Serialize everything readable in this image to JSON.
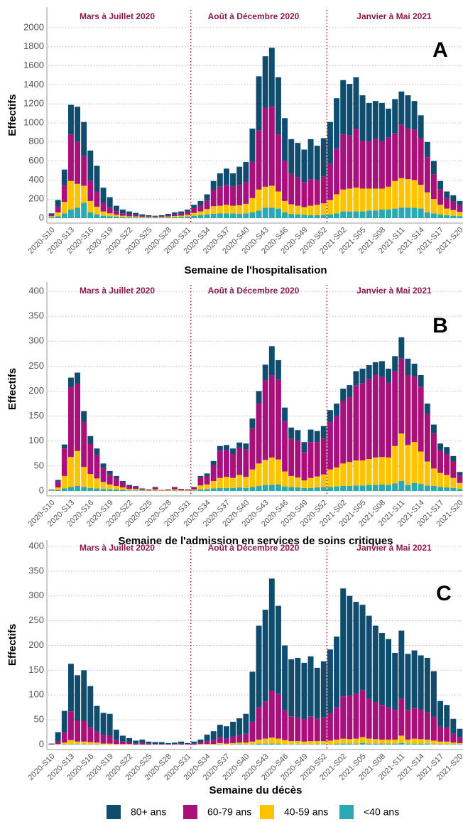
{
  "chart_data": [
    {
      "type": "bar",
      "stacked": true,
      "panel_label": "A",
      "y_label": "Effectifs",
      "x_label": "Semaine de l'hospitalisation",
      "annotations": [
        "Mars à Juillet 2020",
        "Août à Décembre 2020",
        "Janvier à Mai 2021"
      ],
      "legend": "bottom",
      "grid": true,
      "categories": [
        "2020-S10",
        null,
        null,
        "2020-S13",
        null,
        null,
        "2020-S16",
        null,
        null,
        "2020-S19",
        null,
        null,
        "2020-S22",
        null,
        null,
        "2020-S25",
        null,
        null,
        "2020-S28",
        null,
        null,
        "2020-S31",
        null,
        null,
        "2020-S34",
        null,
        null,
        "2020-S37",
        null,
        null,
        "2020-S40",
        null,
        null,
        "2020-S43",
        null,
        null,
        "2020-S46",
        null,
        null,
        "2020-S49",
        null,
        null,
        "2020-S52",
        null,
        null,
        "2021-S02",
        null,
        null,
        "2021-S05",
        null,
        null,
        "2021-S08",
        null,
        null,
        "2021-S11",
        null,
        null,
        "2021-S14",
        null,
        null,
        "2021-S17",
        null,
        null,
        "2021-S20"
      ],
      "ylim": [
        0,
        2000
      ],
      "yticks": [
        0,
        200,
        400,
        600,
        800,
        1000,
        1200,
        1400,
        1600,
        1800,
        2000
      ],
      "series": [
        {
          "name": "80+ ans",
          "color": "#0f4c6e",
          "values": [
            15,
            70,
            160,
            310,
            370,
            360,
            320,
            270,
            160,
            110,
            60,
            40,
            30,
            22,
            15,
            10,
            9,
            10,
            15,
            20,
            22,
            25,
            35,
            50,
            65,
            95,
            140,
            170,
            140,
            195,
            210,
            350,
            570,
            540,
            620,
            600,
            450,
            365,
            360,
            345,
            420,
            360,
            405,
            440,
            530,
            570,
            540,
            540,
            480,
            400,
            400,
            400,
            300,
            360,
            350,
            350,
            300,
            240,
            160,
            140,
            90,
            70,
            65,
            45
          ]
        },
        {
          "name": "60-79 ans",
          "color": "#a8117c",
          "values": [
            15,
            60,
            180,
            490,
            440,
            310,
            210,
            160,
            90,
            60,
            35,
            25,
            20,
            15,
            11,
            9,
            7,
            9,
            13,
            18,
            22,
            30,
            50,
            60,
            90,
            170,
            200,
            210,
            200,
            210,
            230,
            380,
            620,
            830,
            830,
            600,
            420,
            320,
            300,
            260,
            280,
            260,
            280,
            380,
            480,
            580,
            560,
            620,
            500,
            500,
            520,
            500,
            520,
            500,
            560,
            530,
            530,
            490,
            370,
            260,
            160,
            110,
            90,
            70
          ]
        },
        {
          "name": "40-59 ans",
          "color": "#fcc300",
          "values": [
            10,
            40,
            120,
            300,
            250,
            180,
            120,
            80,
            45,
            30,
            20,
            15,
            10,
            10,
            8,
            6,
            5,
            6,
            9,
            12,
            14,
            20,
            30,
            40,
            55,
            80,
            80,
            90,
            80,
            90,
            100,
            150,
            220,
            220,
            230,
            180,
            120,
            100,
            90,
            80,
            100,
            110,
            120,
            150,
            200,
            230,
            240,
            250,
            240,
            230,
            230,
            220,
            240,
            290,
            310,
            300,
            290,
            250,
            210,
            150,
            100,
            70,
            60,
            45
          ]
        },
        {
          "name": "<40 ans",
          "color": "#2ba8b2",
          "values": [
            10,
            20,
            50,
            90,
            110,
            160,
            60,
            40,
            25,
            20,
            15,
            10,
            10,
            8,
            6,
            5,
            4,
            5,
            8,
            10,
            12,
            15,
            25,
            30,
            40,
            45,
            50,
            50,
            50,
            45,
            50,
            60,
            80,
            110,
            110,
            100,
            60,
            45,
            40,
            35,
            30,
            30,
            35,
            40,
            50,
            70,
            70,
            70,
            70,
            80,
            80,
            90,
            90,
            100,
            110,
            110,
            110,
            100,
            60,
            50,
            40,
            30,
            25,
            20
          ]
        }
      ]
    },
    {
      "type": "bar",
      "stacked": true,
      "panel_label": "B",
      "y_label": "Effectifs",
      "x_label": "Semaine de l'admission en services de soins critiques",
      "annotations": [
        "Mars à Juillet 2020",
        "Août à Décembre 2020",
        "Janvier à Mai 2021"
      ],
      "grid": true,
      "categories": [
        "2020-S10",
        null,
        null,
        "2020-S13",
        null,
        null,
        "2020-S16",
        null,
        null,
        "2020-S19",
        null,
        null,
        "2020-S22",
        null,
        null,
        "2020-S25",
        null,
        null,
        "2020-S28",
        null,
        null,
        "2020-S31",
        null,
        null,
        "2020-S34",
        null,
        null,
        "2020-S37",
        null,
        null,
        "2020-S40",
        null,
        null,
        "2020-S43",
        null,
        null,
        "2020-S46",
        null,
        null,
        "2020-S49",
        null,
        null,
        "2020-S52",
        null,
        null,
        "2021-S02",
        null,
        null,
        "2021-S05",
        null,
        null,
        "2021-S08",
        null,
        null,
        "2021-S11",
        null,
        null,
        "2021-S14",
        null,
        null,
        "2021-S17",
        null,
        null,
        "2021-S20"
      ],
      "ylim": [
        0,
        400
      ],
      "yticks": [
        0,
        50,
        100,
        150,
        200,
        250,
        300,
        350,
        400
      ],
      "series": [
        {
          "color": "#0f4c6e",
          "values": [
            0,
            3,
            8,
            19,
            22,
            22,
            16,
            13,
            9,
            7,
            5,
            3,
            2,
            1,
            1,
            1,
            1,
            0,
            1,
            1,
            1,
            1,
            1,
            4,
            5,
            8,
            9,
            10,
            11,
            10,
            12,
            20,
            25,
            31,
            58,
            39,
            28,
            22,
            22,
            20,
            25,
            22,
            25,
            24,
            25,
            25,
            24,
            29,
            29,
            28,
            26,
            32,
            28,
            30,
            43,
            33,
            25,
            23,
            21,
            18,
            14,
            14,
            11,
            6
          ]
        },
        {
          "color": "#a8117c",
          "values": [
            1,
            12,
            55,
            140,
            135,
            90,
            60,
            47,
            28,
            20,
            15,
            10,
            6,
            5,
            2,
            1,
            4,
            1,
            1,
            4,
            2,
            1,
            4,
            15,
            17,
            32,
            55,
            54,
            48,
            55,
            55,
            82,
            120,
            160,
            165,
            160,
            100,
            75,
            73,
            57,
            72,
            69,
            72,
            95,
            103,
            125,
            130,
            150,
            155,
            160,
            165,
            160,
            150,
            150,
            150,
            140,
            132,
            130,
            95,
            70,
            45,
            42,
            33,
            16
          ]
        },
        {
          "color": "#fcc300",
          "values": [
            1,
            5,
            25,
            60,
            70,
            40,
            28,
            20,
            14,
            10,
            7,
            5,
            3,
            3,
            1,
            1,
            2,
            1,
            1,
            2,
            1,
            1,
            2,
            8,
            9,
            15,
            20,
            22,
            20,
            25,
            22,
            35,
            45,
            50,
            55,
            50,
            30,
            22,
            20,
            15,
            20,
            22,
            25,
            35,
            38,
            45,
            48,
            50,
            50,
            52,
            55,
            55,
            55,
            75,
            95,
            80,
            82,
            65,
            48,
            35,
            28,
            25,
            20,
            12
          ]
        },
        {
          "color": "#2ba8b2",
          "values": [
            1,
            2,
            5,
            8,
            10,
            8,
            6,
            5,
            4,
            3,
            3,
            2,
            1,
            1,
            1,
            0,
            1,
            0,
            0,
            1,
            0,
            0,
            1,
            3,
            4,
            5,
            6,
            6,
            6,
            7,
            6,
            8,
            10,
            12,
            12,
            13,
            9,
            8,
            7,
            6,
            6,
            7,
            8,
            8,
            9,
            10,
            10,
            11,
            11,
            12,
            12,
            13,
            12,
            15,
            20,
            12,
            16,
            14,
            11,
            10,
            8,
            7,
            6,
            4
          ]
        }
      ]
    },
    {
      "type": "bar",
      "stacked": true,
      "panel_label": "C",
      "y_label": "Effectifs",
      "x_label": "Semaine du décès",
      "annotations": [
        "Mars à Juillet 2020",
        "Août à Décembre 2020",
        "Janvier à Mai 2021"
      ],
      "grid": true,
      "categories": [
        "2020-S10",
        null,
        null,
        "2020-S13",
        null,
        null,
        "2020-S16",
        null,
        null,
        "2020-S19",
        null,
        null,
        "2020-S22",
        null,
        null,
        "2020-S25",
        null,
        null,
        "2020-S28",
        null,
        null,
        "2020-S31",
        null,
        null,
        "2020-S34",
        null,
        null,
        "2020-S37",
        null,
        null,
        "2020-S40",
        null,
        null,
        "2020-S43",
        null,
        null,
        "2020-S46",
        null,
        null,
        "2020-S49",
        null,
        null,
        "2020-S52",
        null,
        null,
        "2021-S02",
        null,
        null,
        "2021-S05",
        null,
        null,
        "2021-S08",
        null,
        null,
        "2021-S11",
        null,
        null,
        "2021-S14",
        null,
        null,
        "2021-S17",
        null,
        null,
        "2021-S20"
      ],
      "ylim": [
        0,
        400
      ],
      "yticks": [
        0,
        50,
        100,
        150,
        200,
        250,
        300,
        350,
        400
      ],
      "series": [
        {
          "color": "#0f4c6e",
          "values": [
            1,
            19,
            44,
            96,
            92,
            102,
            83,
            52,
            44,
            44,
            21,
            12,
            8,
            6,
            7,
            4,
            4,
            4,
            2,
            3,
            4,
            2,
            4,
            6,
            13,
            18,
            25,
            25,
            30,
            34,
            40,
            101,
            165,
            185,
            226,
            178,
            131,
            115,
            120,
            114,
            121,
            103,
            113,
            129,
            143,
            218,
            201,
            186,
            172,
            168,
            154,
            145,
            138,
            115,
            137,
            113,
            116,
            109,
            110,
            92,
            52,
            46,
            30,
            17
          ]
        },
        {
          "color": "#a8117c",
          "values": [
            1,
            5,
            20,
            58,
            42,
            42,
            30,
            22,
            18,
            16,
            8,
            5,
            4,
            2,
            3,
            2,
            1,
            1,
            1,
            1,
            2,
            1,
            2,
            3,
            6,
            8,
            12,
            10,
            13,
            15,
            18,
            40,
            65,
            75,
            95,
            90,
            60,
            50,
            48,
            45,
            50,
            45,
            48,
            55,
            65,
            85,
            88,
            90,
            95,
            80,
            75,
            70,
            65,
            60,
            75,
            60,
            62,
            60,
            55,
            48,
            30,
            28,
            18,
            12
          ]
        },
        {
          "color": "#fcc300",
          "values": [
            0,
            1,
            3,
            8,
            5,
            5,
            4,
            3,
            2,
            2,
            1,
            1,
            1,
            0,
            0,
            0,
            0,
            0,
            0,
            0,
            0,
            0,
            0,
            1,
            1,
            1,
            2,
            2,
            2,
            3,
            3,
            5,
            8,
            10,
            12,
            10,
            8,
            6,
            6,
            5,
            6,
            6,
            6,
            7,
            8,
            10,
            9,
            10,
            12,
            10,
            9,
            8,
            8,
            8,
            15,
            8,
            10,
            9,
            8,
            7,
            5,
            5,
            3,
            2
          ]
        },
        {
          "color": "#2ba8b2",
          "values": [
            0,
            0,
            1,
            1,
            1,
            1,
            1,
            1,
            0,
            0,
            0,
            0,
            0,
            0,
            0,
            0,
            0,
            0,
            0,
            0,
            0,
            0,
            0,
            0,
            0,
            0,
            1,
            0,
            1,
            1,
            1,
            1,
            2,
            2,
            2,
            2,
            1,
            1,
            1,
            1,
            1,
            1,
            1,
            1,
            2,
            2,
            2,
            2,
            3,
            2,
            2,
            2,
            2,
            2,
            3,
            2,
            2,
            2,
            2,
            1,
            1,
            1,
            1,
            1
          ]
        }
      ]
    }
  ]
}
